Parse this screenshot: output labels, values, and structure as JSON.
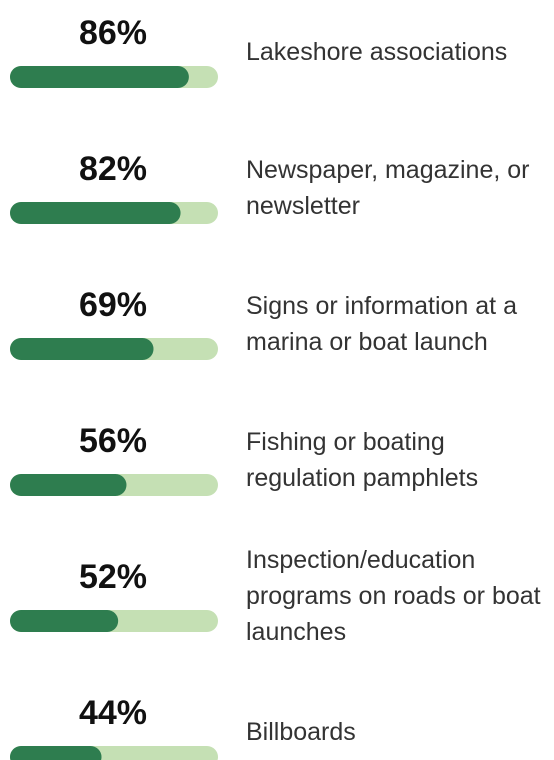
{
  "chart_data": {
    "type": "bar",
    "categories": [
      "Lakeshore associations",
      "Newspaper, magazine, or newsletter",
      "Signs or information at a marina or boat launch",
      "Fishing or boating regulation pamphlets",
      "Inspection/education programs on roads or boat launches",
      "Billboards"
    ],
    "values": [
      86,
      82,
      69,
      56,
      52,
      44
    ],
    "value_labels": [
      "86%",
      "82%",
      "69%",
      "56%",
      "52%",
      "44%"
    ],
    "xlim": [
      0,
      100
    ],
    "color": "#2e7d4f",
    "track_color": "#c5e0b4"
  }
}
